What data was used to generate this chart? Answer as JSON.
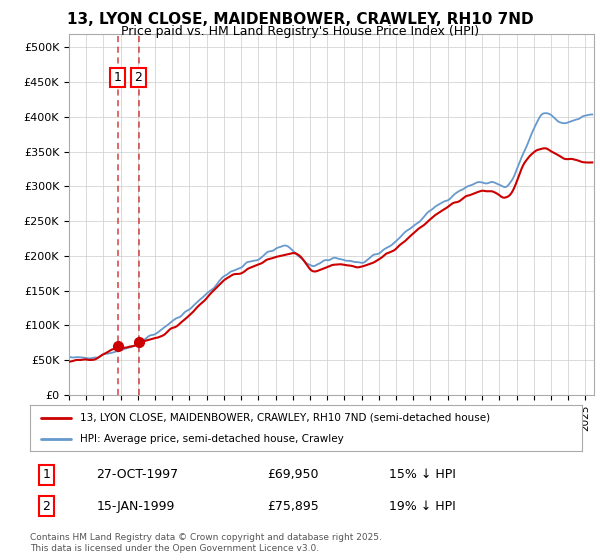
{
  "title": "13, LYON CLOSE, MAIDENBOWER, CRAWLEY, RH10 7ND",
  "subtitle": "Price paid vs. HM Land Registry's House Price Index (HPI)",
  "hpi_color": "#6699cc",
  "price_color": "#cc0000",
  "background_color": "#ffffff",
  "grid_color": "#cccccc",
  "ylim": [
    0,
    520000
  ],
  "yticks": [
    0,
    50000,
    100000,
    150000,
    200000,
    250000,
    300000,
    350000,
    400000,
    450000,
    500000
  ],
  "ytick_labels": [
    "£0",
    "£50K",
    "£100K",
    "£150K",
    "£200K",
    "£250K",
    "£300K",
    "£350K",
    "£400K",
    "£450K",
    "£500K"
  ],
  "sale1_year": 1997.82,
  "sale1_price": 69950,
  "sale1_label": "1",
  "sale1_date": "27-OCT-1997",
  "sale1_hpi_diff": "15% ↓ HPI",
  "sale2_year": 1999.04,
  "sale2_price": 75895,
  "sale2_label": "2",
  "sale2_date": "15-JAN-1999",
  "sale2_hpi_diff": "19% ↓ HPI",
  "legend_line1": "13, LYON CLOSE, MAIDENBOWER, CRAWLEY, RH10 7ND (semi-detached house)",
  "legend_line2": "HPI: Average price, semi-detached house, Crawley",
  "footer": "Contains HM Land Registry data © Crown copyright and database right 2025.\nThis data is licensed under the Open Government Licence v3.0.",
  "xlim_start": 1995.0,
  "xlim_end": 2025.5,
  "hpi_keypoints_x": [
    1995.0,
    1996.0,
    1997.0,
    1998.0,
    1999.5,
    2001.0,
    2002.5,
    2004.0,
    2005.5,
    2007.5,
    2009.0,
    2010.5,
    2012.0,
    2013.5,
    2015.0,
    2016.5,
    2018.0,
    2019.5,
    2020.5,
    2021.5,
    2022.5,
    2023.5,
    2024.5,
    2025.4
  ],
  "hpi_keypoints_y": [
    52000,
    54000,
    57000,
    65000,
    80000,
    105000,
    135000,
    172000,
    190000,
    218000,
    183000,
    198000,
    188000,
    212000,
    245000,
    275000,
    300000,
    308000,
    292000,
    355000,
    415000,
    388000,
    398000,
    403000
  ],
  "price_keypoints_x": [
    1995.0,
    1996.5,
    1997.82,
    1998.5,
    1999.04,
    1999.8,
    2001.0,
    2002.5,
    2004.0,
    2005.5,
    2007.0,
    2008.5,
    2009.0,
    2010.5,
    2012.0,
    2013.5,
    2015.0,
    2016.5,
    2018.0,
    2019.5,
    2020.5,
    2021.5,
    2022.5,
    2023.5,
    2024.5,
    2025.4
  ],
  "price_keypoints_y": [
    48000,
    51000,
    69950,
    67000,
    75895,
    77000,
    95000,
    128000,
    167000,
    182000,
    200000,
    207000,
    174000,
    189000,
    183000,
    202000,
    232000,
    262000,
    287000,
    296000,
    278000,
    342000,
    358000,
    342000,
    338000,
    333000
  ]
}
